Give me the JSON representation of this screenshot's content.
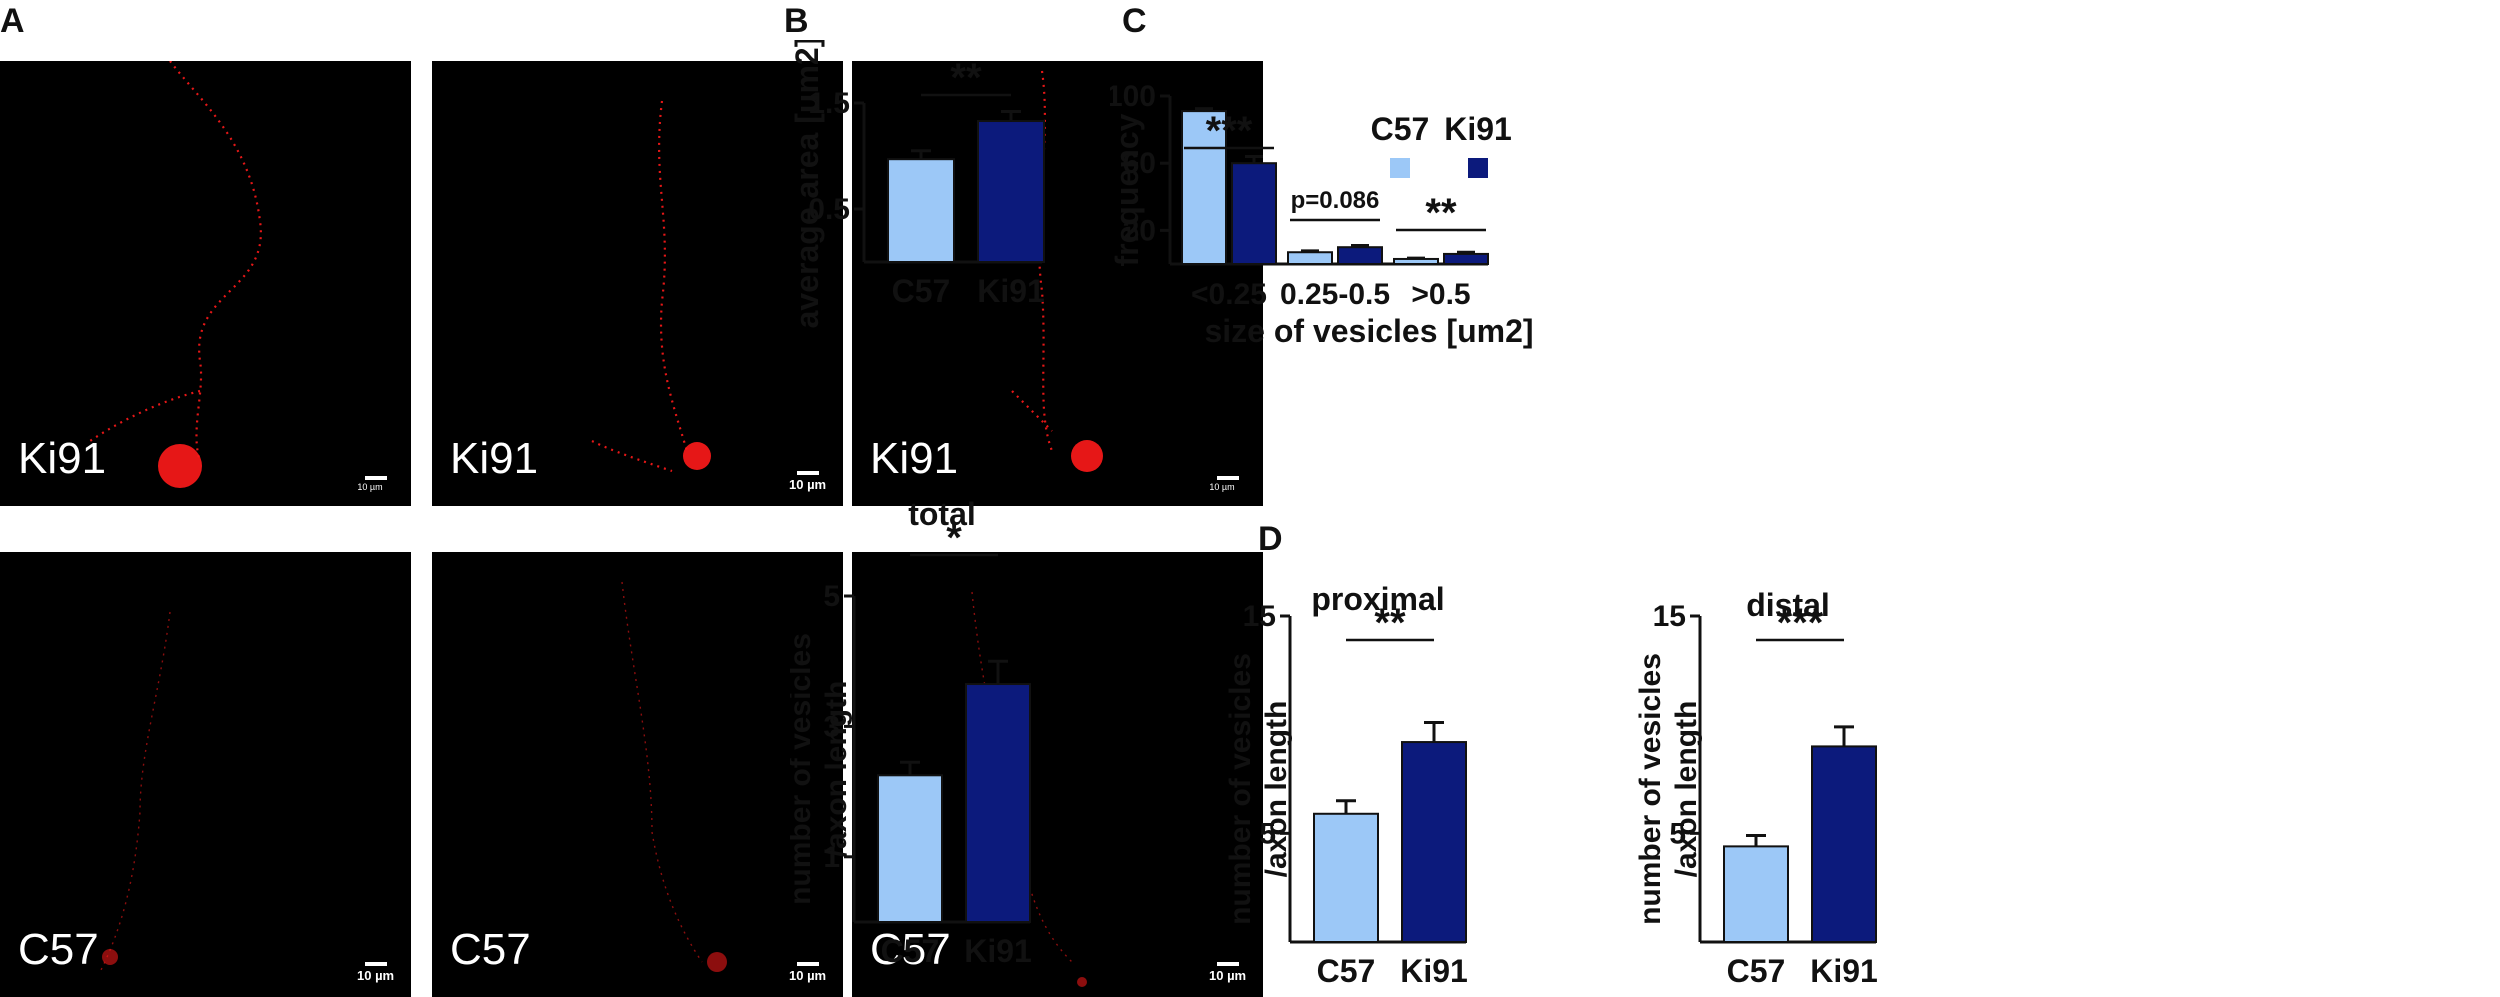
{
  "panel_letters": {
    "a": "A",
    "b": "B",
    "c": "C",
    "d": "D"
  },
  "micrographs": {
    "rows": [
      {
        "label": "Ki91",
        "scales": [
          "10 µm",
          "10 µm",
          "10 µm"
        ]
      },
      {
        "label": "C57",
        "scales": [
          "10 µm",
          "10 µm",
          "10 µm"
        ]
      }
    ]
  },
  "colors": {
    "c57": "#9cc8f7",
    "ki91": "#0c1a7c",
    "signal": "#ff1a1a"
  },
  "chart_data": [
    {
      "panel": "B",
      "type": "bar",
      "categories": [
        "C57",
        "Ki91"
      ],
      "values": [
        0.97,
        1.33
      ],
      "errors": [
        0.08,
        0.09
      ],
      "ylabel": "average area [um2]",
      "ylim": [
        0,
        1.5
      ],
      "yticks": [
        "0.5",
        "1.5"
      ],
      "significance": "**"
    },
    {
      "panel": "C",
      "type": "bar",
      "categories": [
        "<0.25",
        "0.25-0.5",
        ">0.5"
      ],
      "series": [
        {
          "name": "C57",
          "values": [
            91,
            7,
            3
          ],
          "errors": [
            1.5,
            0.8,
            0.5
          ]
        },
        {
          "name": "Ki91",
          "values": [
            60,
            10,
            6
          ],
          "errors": [
            4,
            1,
            1
          ]
        }
      ],
      "xlabel": "size of vesicles [um2]",
      "ylabel": "frequency",
      "ylim": [
        0,
        100
      ],
      "yticks": [
        "20",
        "60",
        "100"
      ],
      "annotations": [
        "***",
        "p=0.086",
        "**"
      ],
      "legend": "top-right"
    },
    {
      "panel": "D",
      "type": "bar",
      "title": "total",
      "categories": [
        "C57",
        "Ki91"
      ],
      "values": [
        2.25,
        3.65
      ],
      "errors": [
        0.2,
        0.35
      ],
      "ylabel_lines": [
        "number of vesicles",
        "/axon length"
      ],
      "ylim": [
        0,
        5
      ],
      "yticks": [
        "1",
        "3",
        "5"
      ],
      "significance": "*"
    },
    {
      "panel": "D",
      "type": "bar",
      "title": "proximal",
      "categories": [
        "C57",
        "Ki91"
      ],
      "values": [
        5.9,
        9.2
      ],
      "errors": [
        0.6,
        0.9
      ],
      "ylabel_lines": [
        "number of vesicles",
        "/axon length"
      ],
      "ylim": [
        0,
        15
      ],
      "yticks": [
        "5",
        "15"
      ],
      "significance": "**"
    },
    {
      "panel": "D",
      "type": "bar",
      "title": "distal",
      "categories": [
        "C57",
        "Ki91"
      ],
      "values": [
        4.4,
        9.0
      ],
      "errors": [
        0.5,
        0.9
      ],
      "ylabel_lines": [
        "number of vesicles",
        "/axon length"
      ],
      "ylim": [
        0,
        15
      ],
      "yticks": [
        "5",
        "15"
      ],
      "significance": "***"
    }
  ]
}
